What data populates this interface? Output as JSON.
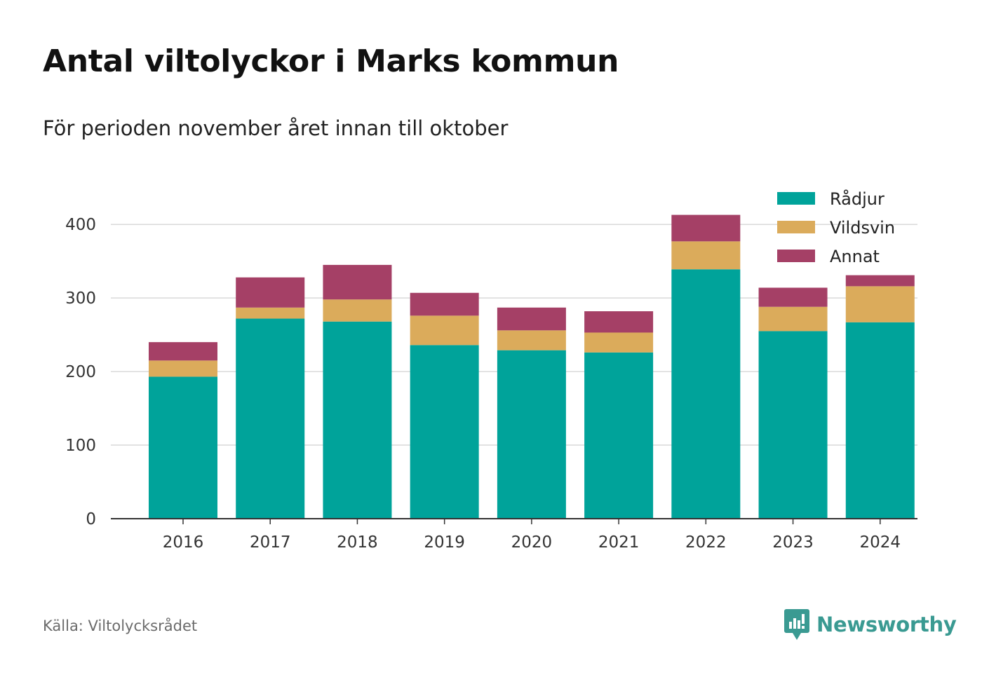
{
  "chart_data": {
    "type": "bar",
    "stacked": true,
    "title": "Antal viltolyckor i Marks kommun",
    "subtitle": "För perioden november året innan till oktober",
    "categories": [
      "2016",
      "2017",
      "2018",
      "2019",
      "2020",
      "2021",
      "2022",
      "2023",
      "2024"
    ],
    "series": [
      {
        "name": "Rådjur",
        "color": "#00a39a",
        "values": [
          193,
          272,
          268,
          236,
          229,
          226,
          339,
          255,
          267
        ]
      },
      {
        "name": "Vildsvin",
        "color": "#dbab5b",
        "values": [
          22,
          15,
          30,
          40,
          27,
          27,
          38,
          33,
          49
        ]
      },
      {
        "name": "Annat",
        "color": "#a54066",
        "values": [
          25,
          41,
          47,
          31,
          31,
          29,
          36,
          26,
          15
        ]
      }
    ],
    "ylim": [
      0,
      420
    ],
    "yticks": [
      0,
      100,
      200,
      300,
      400
    ],
    "grid": true,
    "legend_position": "top-right",
    "xlabel": "",
    "ylabel": ""
  },
  "source": "Källa: Viltolycksrådet",
  "brand": {
    "name": "Newsworthy",
    "icon": "newsworthy-logo-icon",
    "color": "#3a9a92"
  }
}
